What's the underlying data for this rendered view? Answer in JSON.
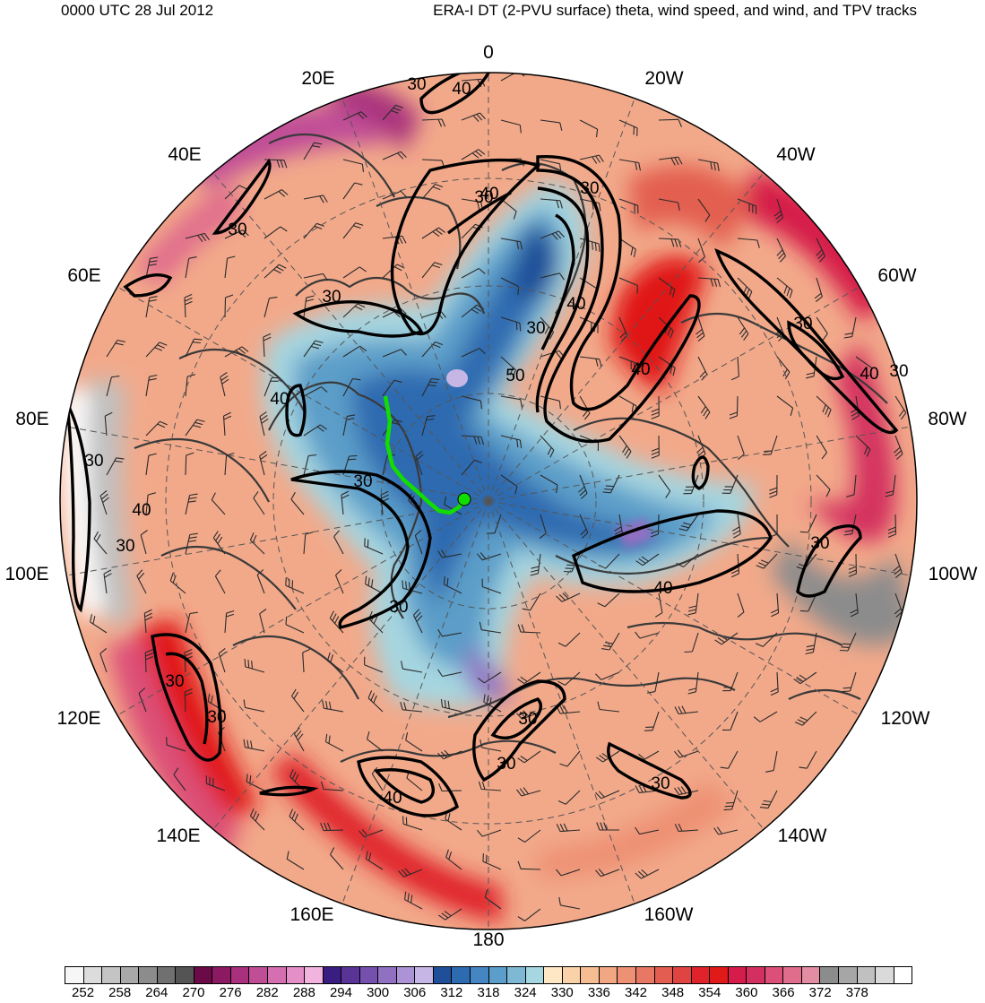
{
  "header": {
    "time": "0000 UTC 28 Jul 2012",
    "title": "ERA-I DT (2-PVU surface) theta, wind speed, and wind, and TPV tracks"
  },
  "map": {
    "projection": "north-polar-stereographic",
    "shading": "potential temperature on the 2-PVU surface (K)",
    "wind_speed_contour_labels": [
      "30",
      "40",
      "30",
      "30",
      "30",
      "40",
      "30",
      "40",
      "30",
      "50",
      "40",
      "30",
      "40",
      "30",
      "40",
      "30",
      "30",
      "40",
      "30",
      "30",
      "30",
      "40",
      "30",
      "30",
      "30",
      "30",
      "40",
      "30"
    ],
    "longitude_labels": [
      "0",
      "20W",
      "40W",
      "60W",
      "80W",
      "100W",
      "120W",
      "140W",
      "160W",
      "180",
      "160E",
      "140E",
      "120E",
      "100E",
      "80E",
      "60E",
      "40E",
      "20E"
    ],
    "tpv_track_color": "#11dd00",
    "contour_color": "#000000",
    "coastline_color": "#3a3a3a"
  },
  "colorbar": {
    "colors": [
      "#f6f6f6",
      "#dcdcdc",
      "#c4c4c4",
      "#a9a9a9",
      "#8c8c8c",
      "#707070",
      "#545454",
      "#6b0a47",
      "#8c1a62",
      "#a8307d",
      "#c04e97",
      "#d56fb1",
      "#e48fc8",
      "#f2b4de",
      "#3a1d80",
      "#5a3396",
      "#7650ad",
      "#9170c2",
      "#ab93d5",
      "#c6b6e6",
      "#1f4f98",
      "#2d6bb0",
      "#4585c2",
      "#5b9ec9",
      "#7fb8d4",
      "#a6d6e0",
      "#fde7c4",
      "#f9d2a9",
      "#f6bd93",
      "#f2a783",
      "#ee9073",
      "#e87863",
      "#e35e50",
      "#df4440",
      "#e0222a",
      "#e01919",
      "#d61c4a",
      "#d4305f",
      "#dc4f77",
      "#e06d8c",
      "#e28da1",
      "#8c8c8c",
      "#a6a6a6",
      "#c0c0c0",
      "#dadada",
      "#ffffff"
    ],
    "labels": [
      "252",
      "258",
      "264",
      "270",
      "276",
      "282",
      "288",
      "294",
      "300",
      "306",
      "312",
      "318",
      "324",
      "330",
      "336",
      "342",
      "348",
      "354",
      "360",
      "366",
      "372",
      "378"
    ]
  }
}
